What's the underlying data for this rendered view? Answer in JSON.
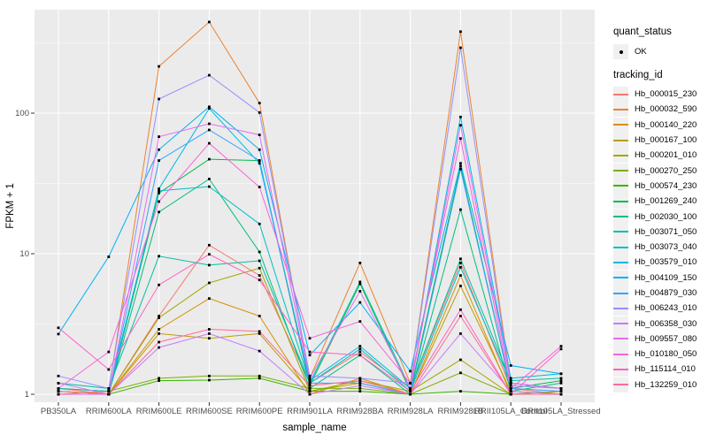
{
  "figure": {
    "panel_bg": "#EBEBEB",
    "grid_major_color": "#FFFFFF",
    "grid_minor_color": "#FFFFFF",
    "point_color": "#000000",
    "tick_label_color": "#4D4D4D"
  },
  "axes": {
    "x_title": "sample_name",
    "y_title": "FPKM + 1"
  },
  "legend": {
    "quant_title": "quant_status",
    "quant_item": "OK",
    "tracking_title": "tracking_id"
  },
  "chart_data": {
    "type": "line",
    "x_label": "sample_name",
    "y_label": "FPKM + 1",
    "y_scale": "log10",
    "y_ticks": [
      1,
      10,
      100
    ],
    "ylim": [
      0.95,
      560
    ],
    "grid": true,
    "legend_position": "right",
    "point_marker": "small black square (quant_status OK)",
    "x_categories": [
      "PB350LA",
      "RRIM600LA",
      "RRIM600LE",
      "RRIM600SE",
      "RRIM600PE",
      "RRIM901LA",
      "RRIM928BA",
      "RRIM928LA",
      "RRIM928LB",
      "RRII105LA_Control",
      "RRII105LA_Stressed"
    ],
    "series": [
      {
        "name": "Hb_000015_230",
        "color": "#F8766D",
        "values": [
          1.1,
          1.0,
          3.6,
          11.5,
          7.0,
          1.2,
          2.0,
          1.1,
          8.6,
          1.1,
          1.0
        ]
      },
      {
        "name": "Hb_000032_590",
        "color": "#EA8331",
        "values": [
          1.0,
          1.05,
          215,
          445,
          118,
          1.3,
          8.6,
          1.2,
          380,
          1.2,
          1.1
        ]
      },
      {
        "name": "Hb_000140_220",
        "color": "#D89000",
        "values": [
          1.0,
          1.0,
          2.9,
          4.8,
          3.6,
          1.0,
          1.3,
          1.0,
          7.0,
          1.0,
          1.05
        ]
      },
      {
        "name": "Hb_000167_100",
        "color": "#C09B00",
        "values": [
          1.05,
          1.0,
          2.7,
          2.5,
          2.7,
          1.05,
          1.2,
          1.0,
          5.9,
          1.05,
          1.0
        ]
      },
      {
        "name": "Hb_000201_010",
        "color": "#A3A500",
        "values": [
          1.0,
          1.0,
          3.5,
          6.2,
          7.9,
          1.05,
          1.25,
          1.05,
          1.76,
          1.0,
          1.0
        ]
      },
      {
        "name": "Hb_000270_250",
        "color": "#7CAE00",
        "values": [
          1.1,
          1.05,
          1.3,
          1.35,
          1.35,
          1.1,
          1.1,
          1.0,
          1.42,
          1.0,
          1.05
        ]
      },
      {
        "name": "Hb_000574_230",
        "color": "#39B600",
        "values": [
          1.05,
          1.0,
          1.25,
          1.26,
          1.3,
          1.05,
          1.05,
          1.0,
          1.05,
          1.0,
          1.0
        ]
      },
      {
        "name": "Hb_001269_240",
        "color": "#00BB4E",
        "values": [
          1.0,
          1.0,
          27,
          47,
          46,
          1.15,
          6.1,
          1.05,
          42,
          1.1,
          1.25
        ]
      },
      {
        "name": "Hb_002030_100",
        "color": "#00BF7D",
        "values": [
          1.0,
          1.0,
          19.8,
          34,
          10.3,
          1.1,
          1.9,
          1.0,
          20.6,
          1.05,
          1.2
        ]
      },
      {
        "name": "Hb_003071_050",
        "color": "#00C1A3",
        "values": [
          1.2,
          1.1,
          9.6,
          8.3,
          8.9,
          1.2,
          6.3,
          1.1,
          9.2,
          1.25,
          1.3
        ]
      },
      {
        "name": "Hb_003073_040",
        "color": "#00BFC4",
        "values": [
          1.1,
          1.05,
          28,
          30,
          16.3,
          1.2,
          2.1,
          1.05,
          8.0,
          1.2,
          1.1
        ]
      },
      {
        "name": "Hb_003579_010",
        "color": "#00BAE0",
        "values": [
          1.0,
          1.0,
          29,
          108,
          44,
          1.25,
          2.2,
          1.1,
          94,
          1.3,
          1.4
        ]
      },
      {
        "name": "Hb_004109_150",
        "color": "#00B0F6",
        "values": [
          2.68,
          9.5,
          55,
          111,
          55,
          1.9,
          4.5,
          1.46,
          44,
          1.6,
          1.4
        ]
      },
      {
        "name": "Hb_004879_030",
        "color": "#35A2FF",
        "values": [
          1.0,
          1.0,
          46,
          76,
          46,
          1.2,
          1.2,
          1.0,
          40,
          1.1,
          1.05
        ]
      },
      {
        "name": "Hb_006243_010",
        "color": "#9590FF",
        "values": [
          1.35,
          1.1,
          126,
          186,
          101,
          1.35,
          1.3,
          1.2,
          292,
          1.15,
          1.1
        ]
      },
      {
        "name": "Hb_006358_030",
        "color": "#C77CFF",
        "values": [
          1.2,
          1.0,
          2.15,
          2.7,
          2.03,
          1.0,
          1.15,
          1.0,
          2.7,
          1.05,
          1.0
        ]
      },
      {
        "name": "Hb_009557_080",
        "color": "#E76BF3",
        "values": [
          1.0,
          1.0,
          68,
          84,
          70,
          1.3,
          5.4,
          1.1,
          82,
          1.2,
          1.1
        ]
      },
      {
        "name": "Hb_010180_050",
        "color": "#FA62DB",
        "values": [
          1.1,
          2.0,
          23.5,
          61,
          29.8,
          2.5,
          3.3,
          1.2,
          66,
          1.1,
          2.2
        ]
      },
      {
        "name": "Hb_115114_010",
        "color": "#FF61C3",
        "values": [
          2.97,
          1.5,
          6.0,
          9.9,
          6.5,
          2.0,
          1.9,
          1.05,
          4.0,
          1.0,
          2.1
        ]
      },
      {
        "name": "Hb_132259_010",
        "color": "#FF6A98",
        "values": [
          1.05,
          1.0,
          2.35,
          2.9,
          2.8,
          1.15,
          1.25,
          1.0,
          3.6,
          1.0,
          1.0
        ]
      }
    ]
  }
}
